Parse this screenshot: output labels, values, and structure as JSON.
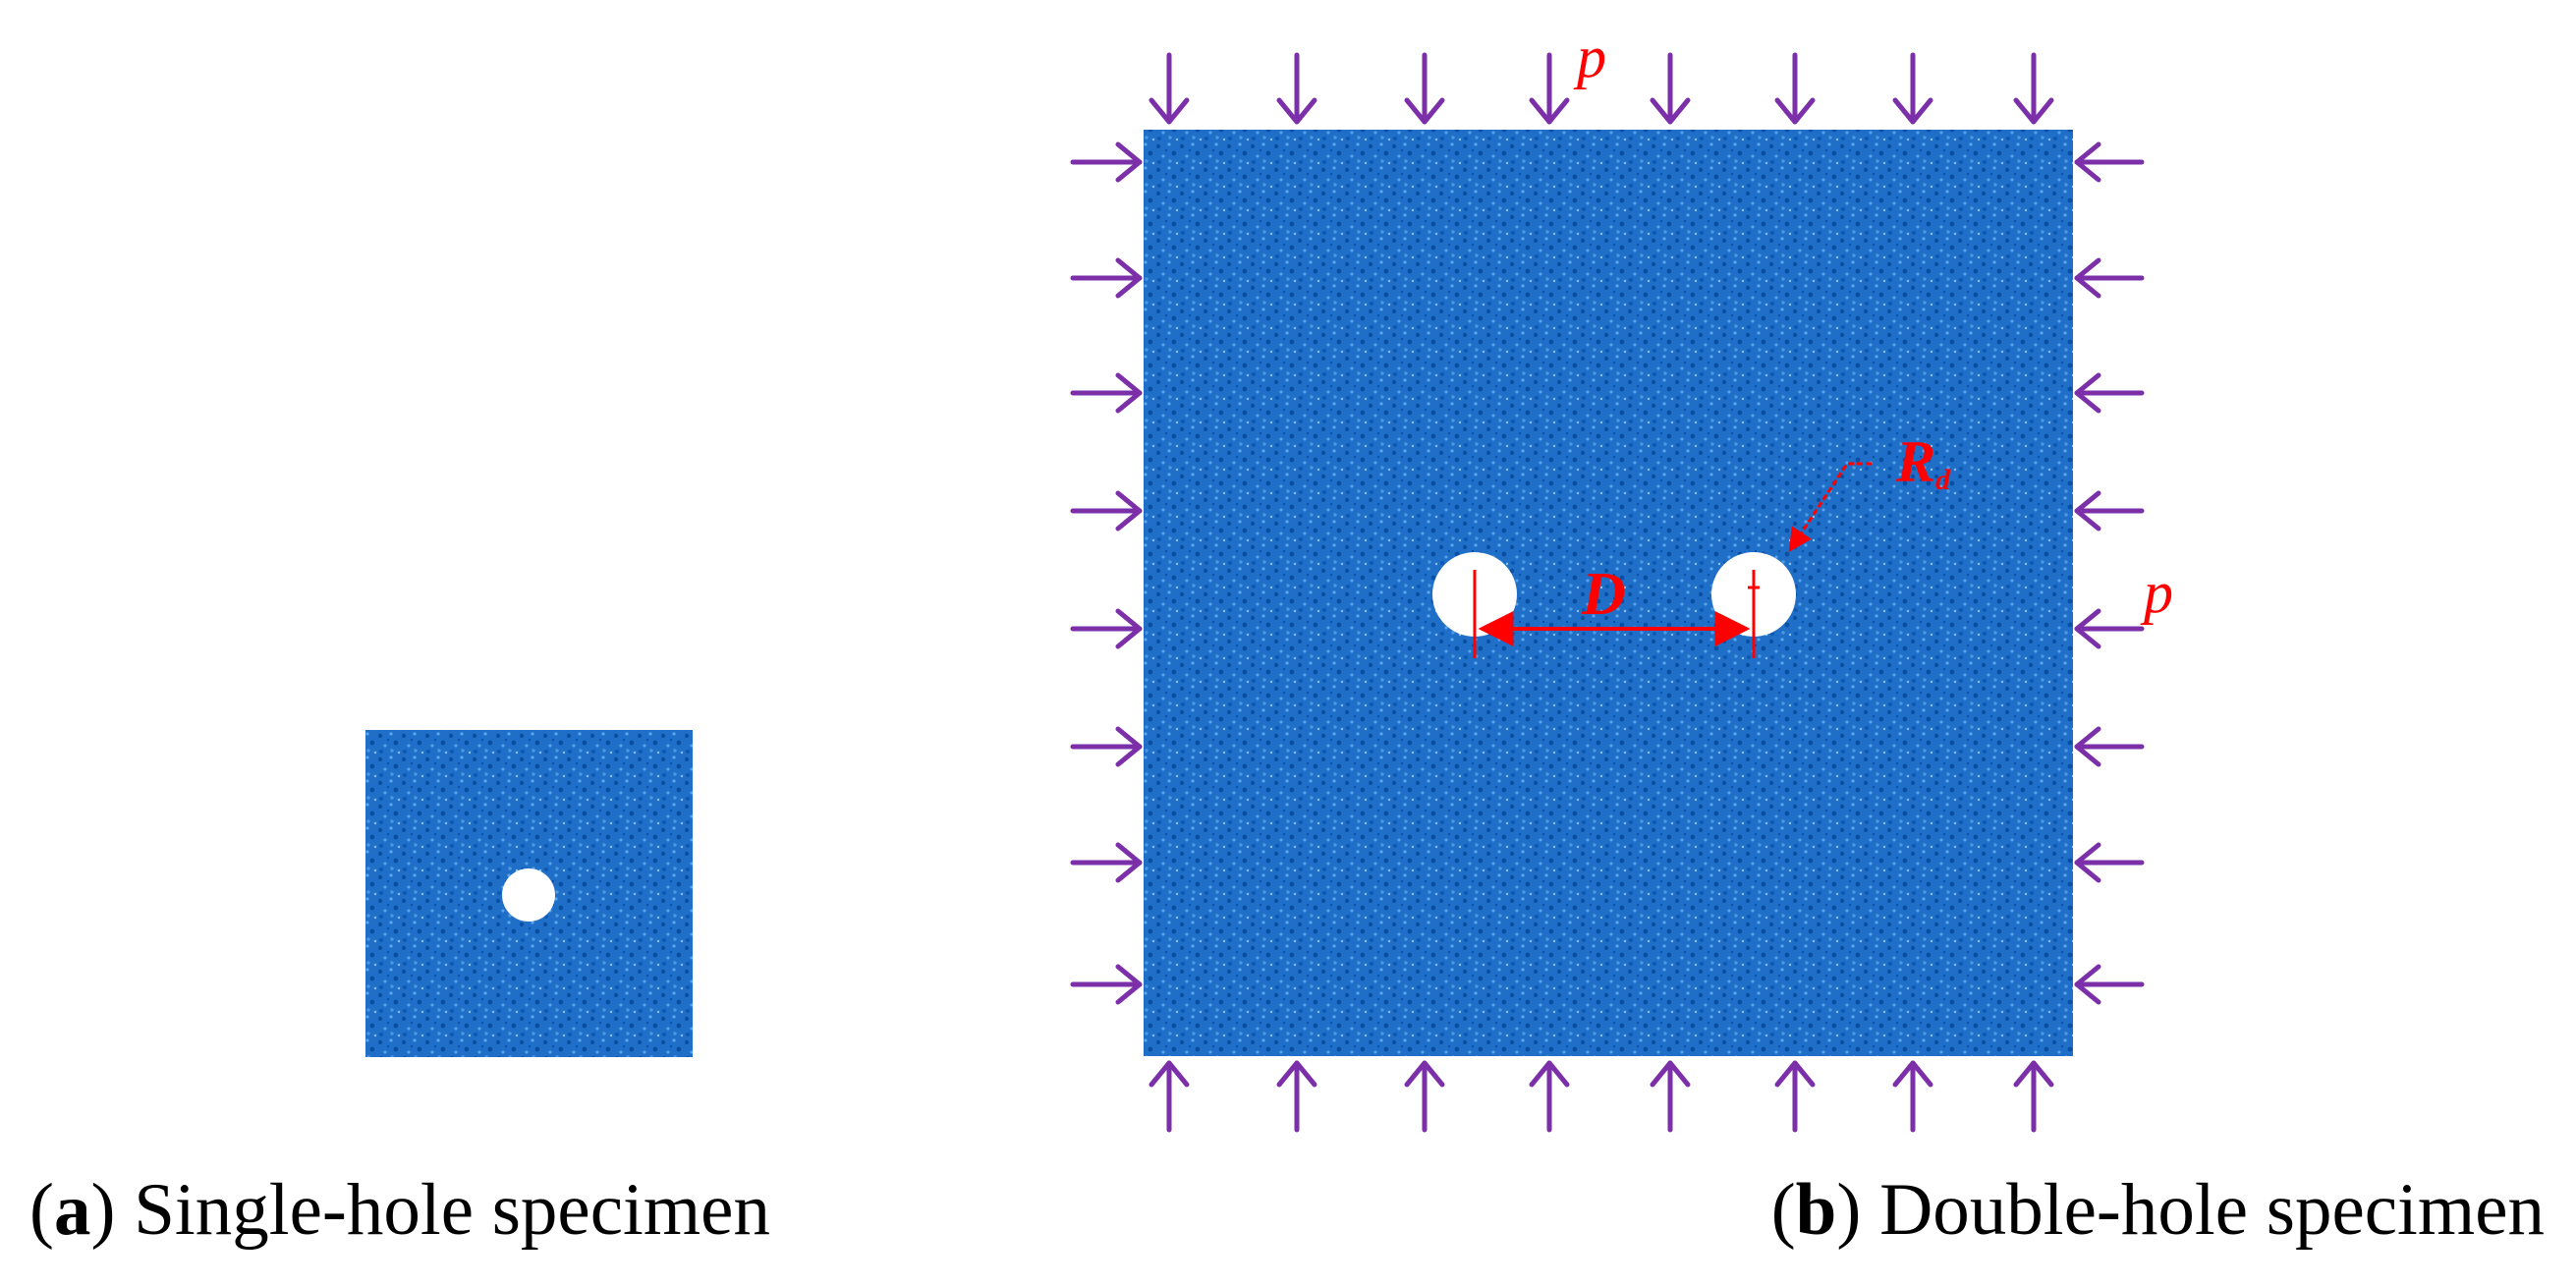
{
  "panels": [
    {
      "id": "a",
      "label_open": "(",
      "letter": "a",
      "label_close": ")",
      "caption": "Single-hole specimen"
    },
    {
      "id": "b",
      "label_open": "(",
      "letter": "b",
      "label_close": ")",
      "caption": "Double-hole specimen"
    }
  ],
  "annotations": {
    "load_top": "p",
    "load_right": "p",
    "hole_spacing": "D",
    "hole_radius_main": "R",
    "hole_radius_sub": "d"
  },
  "colors": {
    "specimen_fill": "#1f6fc8",
    "specimen_speckle_dark": "#0b4fa3",
    "specimen_speckle_light": "#5aa6ea",
    "hole_fill": "#ffffff",
    "load_arrows": "#7b2fa8",
    "dimension_annotation": "#ff0000",
    "caption_text": "#000000"
  },
  "icons": {
    "load_arrow": "arrow-icon",
    "dimension_arrow": "double-arrow-icon"
  }
}
